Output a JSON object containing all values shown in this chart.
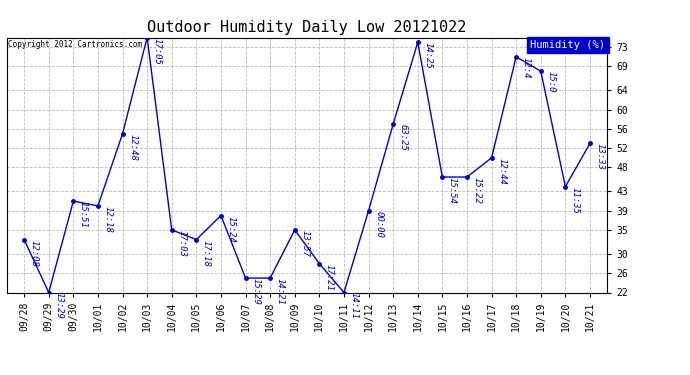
{
  "title": "Outdoor Humidity Daily Low 20121022",
  "copyright": "Copyright 2012 Cartronics.com",
  "legend_label": "Humidity (%)",
  "x_labels": [
    "09/28",
    "09/29",
    "09/30",
    "10/01",
    "10/02",
    "10/03",
    "10/04",
    "10/05",
    "10/06",
    "10/07",
    "10/08",
    "10/09",
    "10/10",
    "10/11",
    "10/12",
    "10/13",
    "10/14",
    "10/15",
    "10/16",
    "10/17",
    "10/18",
    "10/19",
    "10/20",
    "10/21"
  ],
  "y_values": [
    33,
    22,
    41,
    40,
    55,
    75,
    35,
    33,
    38,
    25,
    25,
    35,
    28,
    22,
    39,
    57,
    74,
    46,
    46,
    50,
    71,
    68,
    44,
    53
  ],
  "point_labels": [
    "12:08",
    "13:29",
    "15:51",
    "12:18",
    "12:48",
    "17:05",
    "17:03",
    "17:18",
    "15:24",
    "15:29",
    "14:21",
    "13:57",
    "17:21",
    "14:11",
    "00:00",
    "63:25",
    "14:25",
    "15:54",
    "15:22",
    "12:44",
    "12:4",
    "15:0",
    "11:35",
    "13:33"
  ],
  "line_color": "#0000cc",
  "bg_color": "#ffffff",
  "grid_color": "#aaaaaa",
  "title_fontsize": 11,
  "tick_fontsize": 7,
  "annot_fontsize": 6.5,
  "ylim_min": 22,
  "ylim_max": 75,
  "yticks": [
    22,
    26,
    30,
    35,
    39,
    43,
    48,
    52,
    56,
    60,
    64,
    69,
    73
  ]
}
